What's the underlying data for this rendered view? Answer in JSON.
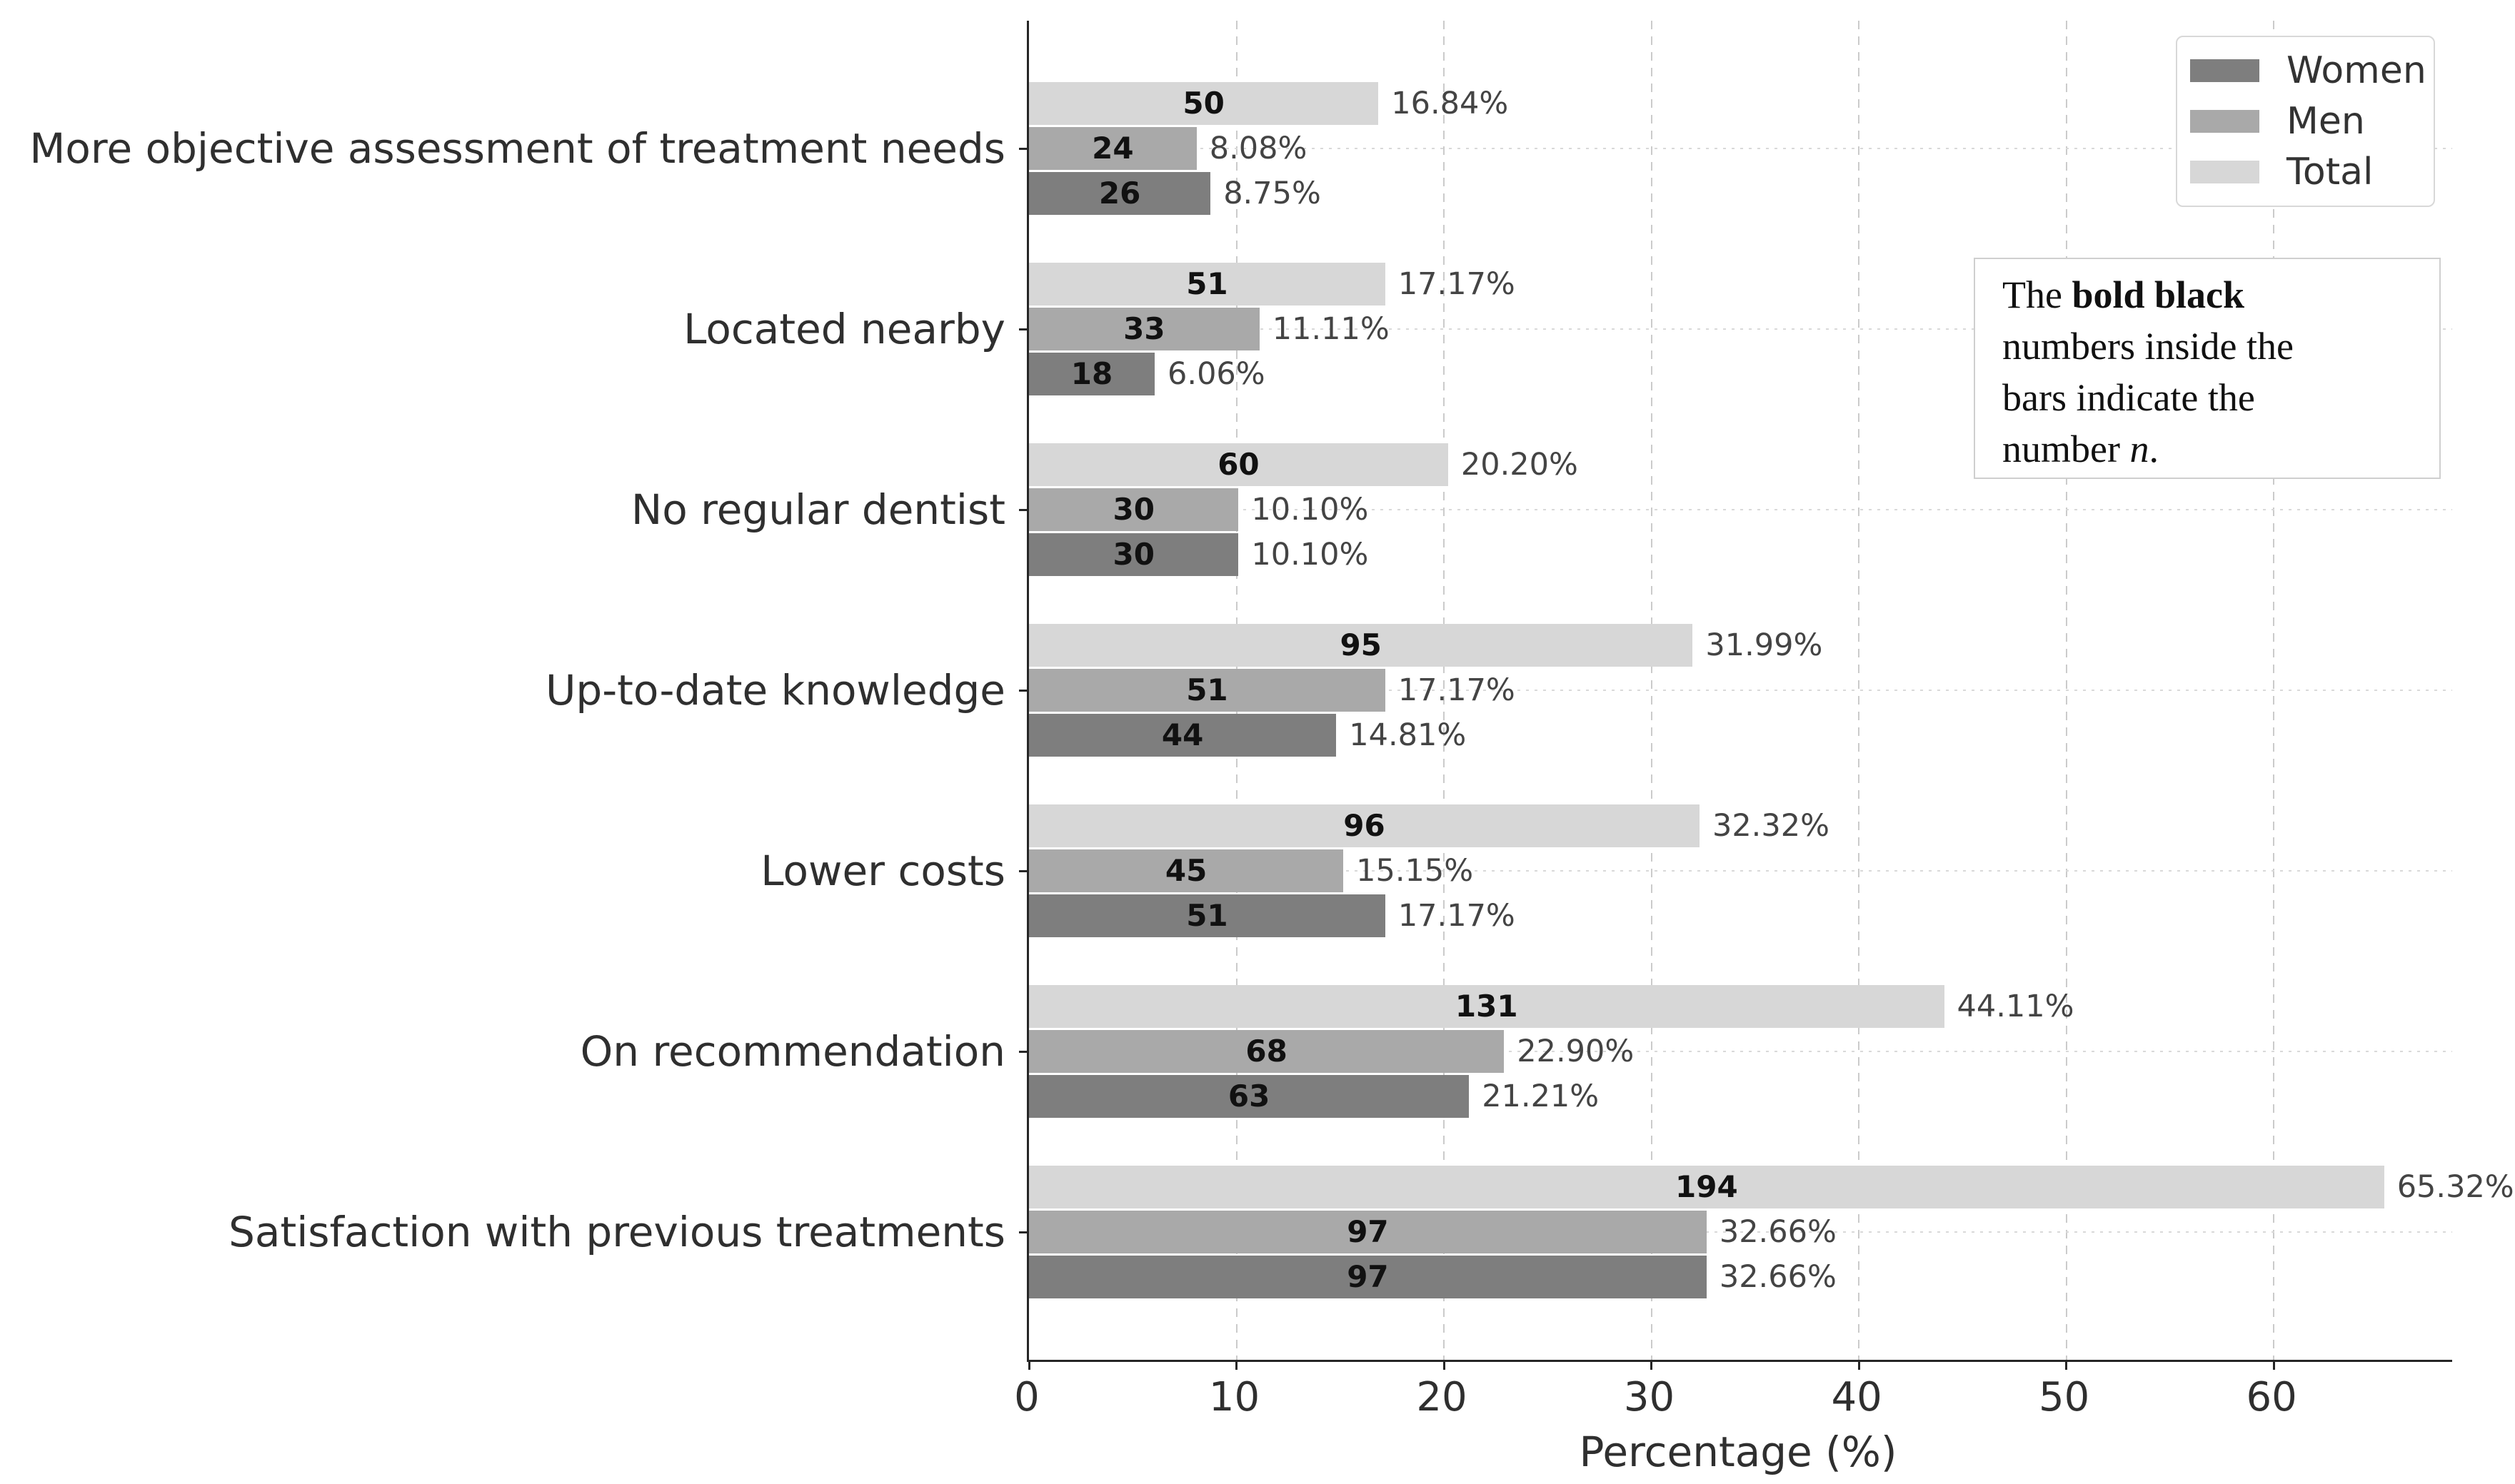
{
  "chart_data": {
    "type": "bar",
    "orientation": "horizontal",
    "title": "",
    "xlabel": "Percentage (%)",
    "ylabel": "",
    "xlim": [
      0,
      68.6
    ],
    "xticks": [
      "0",
      "10",
      "20",
      "30",
      "40",
      "50",
      "60"
    ],
    "xtick_values": [
      0,
      10,
      20,
      30,
      40,
      50,
      60
    ],
    "grid": "dashed vertical and horizontal gridlines",
    "legend_position": "top-right",
    "bar_order_top_to_bottom": [
      "Total",
      "Men",
      "Women"
    ],
    "categories": [
      "More objective assessment of treatment needs",
      "Located nearby",
      "No regular dentist",
      "Up-to-date knowledge",
      "Lower costs",
      "On recommendation",
      "Satisfaction with previous treatments"
    ],
    "series": [
      {
        "name": "Women",
        "color": "#7e7e7e",
        "counts": [
          26,
          18,
          30,
          44,
          51,
          63,
          97
        ],
        "percents": [
          8.75,
          6.06,
          10.1,
          14.81,
          17.17,
          21.21,
          32.66
        ],
        "pct_labels": [
          "8.75%",
          "6.06%",
          "10.10%",
          "14.81%",
          "17.17%",
          "21.21%",
          "32.66%"
        ]
      },
      {
        "name": "Men",
        "color": "#a9a9a9",
        "counts": [
          24,
          33,
          30,
          51,
          45,
          68,
          97
        ],
        "percents": [
          8.08,
          11.11,
          10.1,
          17.17,
          15.15,
          22.9,
          32.66
        ],
        "pct_labels": [
          "8.08%",
          "11.11%",
          "10.10%",
          "17.17%",
          "15.15%",
          "22.90%",
          "32.66%"
        ]
      },
      {
        "name": "Total",
        "color": "#d7d7d7",
        "counts": [
          50,
          51,
          60,
          95,
          96,
          131,
          194
        ],
        "percents": [
          16.84,
          17.17,
          20.2,
          31.99,
          32.32,
          44.11,
          65.32
        ],
        "pct_labels": [
          "16.84%",
          "17.17%",
          "20.20%",
          "31.99%",
          "32.32%",
          "44.11%",
          "65.32%"
        ]
      }
    ]
  },
  "legend": {
    "items": [
      {
        "label": "Women",
        "color": "#7e7e7e"
      },
      {
        "label": "Men",
        "color": "#a9a9a9"
      },
      {
        "label": "Total",
        "color": "#d7d7d7"
      }
    ]
  },
  "annotation": {
    "lines": [
      {
        "segments": [
          {
            "text": "The ",
            "style": "normal"
          },
          {
            "text": "bold black",
            "style": "bold"
          }
        ]
      },
      {
        "segments": [
          {
            "text": "numbers inside the",
            "style": "normal"
          }
        ]
      },
      {
        "segments": [
          {
            "text": "bars indicate the",
            "style": "normal"
          }
        ]
      },
      {
        "segments": [
          {
            "text": "number ",
            "style": "normal"
          },
          {
            "text": "n",
            "style": "italic"
          },
          {
            "text": ".",
            "style": "normal"
          }
        ]
      }
    ]
  },
  "axis": {
    "xlabel": "Percentage (%)"
  }
}
